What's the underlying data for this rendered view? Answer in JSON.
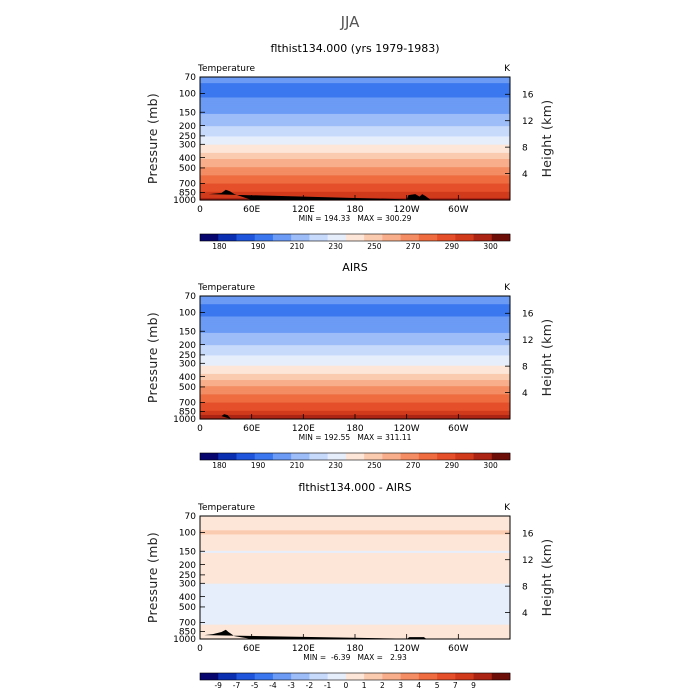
{
  "figure_title": "JJA",
  "colors": {
    "abs_palette": [
      "#06066e",
      "#0a2fb0",
      "#1f55dc",
      "#3b78f0",
      "#6b9bf5",
      "#9dbdf8",
      "#c8dafb",
      "#e6eefc",
      "#fde6d8",
      "#fbcbb0",
      "#f8ae8a",
      "#f48d63",
      "#ee6c3f",
      "#e5502a",
      "#d23a1c",
      "#ac2514",
      "#6e0e08"
    ],
    "diff_palette": [
      "#06066e",
      "#0a2fb0",
      "#1f55dc",
      "#3b78f0",
      "#6b9bf5",
      "#9dbdf8",
      "#c8dafb",
      "#e6eefc",
      "#fde6d8",
      "#fbcbb0",
      "#f8ae8a",
      "#f48d63",
      "#ee6c3f",
      "#e5502a",
      "#d23a1c",
      "#ac2514",
      "#6e0e08"
    ],
    "topography": "#000000"
  },
  "chart_data": [
    {
      "type": "heatmap",
      "title": "flthist134.000 (yrs 1979-1983)",
      "left_label": "Temperature",
      "right_label": "K",
      "ylabel": "Pressure (mb)",
      "ylabel_right": "Height (km)",
      "x_ticks": [
        "0",
        "60E",
        "120E",
        "180",
        "120W",
        "60W"
      ],
      "x_tick_values": [
        0,
        60,
        120,
        180,
        240,
        300
      ],
      "xlim": [
        0,
        360
      ],
      "y_ticks": [
        "70",
        "100",
        "150",
        "200",
        "250",
        "300",
        "400",
        "500",
        "700",
        "850",
        "1000"
      ],
      "y_tick_values": [
        70,
        100,
        150,
        200,
        250,
        300,
        400,
        500,
        700,
        850,
        1000
      ],
      "ylim": [
        1000,
        70
      ],
      "y_scale": "log",
      "height_ticks": [
        "4",
        "8",
        "12",
        "16"
      ],
      "height_tick_values": [
        4,
        8,
        12,
        16
      ],
      "min_max_text": "MIN = 194.33   MAX = 300.29",
      "min": 194.33,
      "max": 300.29,
      "colorbar_labels": [
        "180",
        "190",
        "210",
        "230",
        "250",
        "270",
        "290",
        "300"
      ],
      "profile": [
        [
          70,
          205
        ],
        [
          100,
          201
        ],
        [
          130,
          208
        ],
        [
          170,
          214
        ],
        [
          200,
          219
        ],
        [
          250,
          228
        ],
        [
          300,
          235
        ],
        [
          350,
          242
        ],
        [
          400,
          250
        ],
        [
          450,
          257
        ],
        [
          500,
          262
        ],
        [
          600,
          269
        ],
        [
          700,
          276
        ],
        [
          800,
          282
        ],
        [
          850,
          286
        ],
        [
          925,
          292
        ],
        [
          1000,
          297
        ]
      ],
      "topography": [
        [
          10,
          880
        ],
        [
          25,
          860
        ],
        [
          30,
          800
        ],
        [
          35,
          830
        ],
        [
          40,
          880
        ],
        [
          60,
          1000
        ],
        [
          240,
          1000
        ],
        [
          242,
          900
        ],
        [
          250,
          880
        ],
        [
          255,
          930
        ],
        [
          258,
          880
        ],
        [
          262,
          920
        ],
        [
          268,
          1000
        ]
      ]
    },
    {
      "type": "heatmap",
      "title": "AIRS",
      "left_label": "Temperature",
      "right_label": "K",
      "ylabel": "Pressure (mb)",
      "ylabel_right": "Height (km)",
      "x_ticks": [
        "0",
        "60E",
        "120E",
        "180",
        "120W",
        "60W"
      ],
      "x_tick_values": [
        0,
        60,
        120,
        180,
        240,
        300
      ],
      "xlim": [
        0,
        360
      ],
      "y_ticks": [
        "70",
        "100",
        "150",
        "200",
        "250",
        "300",
        "400",
        "500",
        "700",
        "850",
        "1000"
      ],
      "y_tick_values": [
        70,
        100,
        150,
        200,
        250,
        300,
        400,
        500,
        700,
        850,
        1000
      ],
      "ylim": [
        1000,
        70
      ],
      "y_scale": "log",
      "height_ticks": [
        "4",
        "8",
        "12",
        "16"
      ],
      "height_tick_values": [
        4,
        8,
        12,
        16
      ],
      "min_max_text": "MIN = 192.55   MAX = 311.11",
      "min": 192.55,
      "max": 311.11,
      "colorbar_labels": [
        "180",
        "190",
        "210",
        "230",
        "250",
        "270",
        "290",
        "300"
      ],
      "profile": [
        [
          70,
          206
        ],
        [
          100,
          201
        ],
        [
          130,
          208
        ],
        [
          170,
          214
        ],
        [
          200,
          219
        ],
        [
          250,
          227
        ],
        [
          300,
          234
        ],
        [
          350,
          241
        ],
        [
          400,
          249
        ],
        [
          450,
          256
        ],
        [
          500,
          262
        ],
        [
          600,
          269
        ],
        [
          700,
          276
        ],
        [
          800,
          283
        ],
        [
          850,
          287
        ],
        [
          925,
          293
        ],
        [
          1000,
          298
        ]
      ],
      "topography": [
        [
          25,
          940
        ],
        [
          28,
          900
        ],
        [
          32,
          920
        ],
        [
          36,
          1000
        ]
      ]
    },
    {
      "type": "heatmap",
      "title": "flthist134.000 - AIRS",
      "left_label": "Temperature",
      "right_label": "K",
      "ylabel": "Pressure (mb)",
      "ylabel_right": "Height (km)",
      "x_ticks": [
        "0",
        "60E",
        "120E",
        "180",
        "120W",
        "60W"
      ],
      "x_tick_values": [
        0,
        60,
        120,
        180,
        240,
        300
      ],
      "xlim": [
        0,
        360
      ],
      "y_ticks": [
        "70",
        "100",
        "150",
        "200",
        "250",
        "300",
        "400",
        "500",
        "700",
        "850",
        "1000"
      ],
      "y_tick_values": [
        70,
        100,
        150,
        200,
        250,
        300,
        400,
        500,
        700,
        850,
        1000
      ],
      "ylim": [
        1000,
        70
      ],
      "y_scale": "log",
      "height_ticks": [
        "4",
        "8",
        "12",
        "16"
      ],
      "height_tick_values": [
        4,
        8,
        12,
        16
      ],
      "min_max_text": "MIN =  -6.39   MAX =   2.93",
      "min": -6.39,
      "max": 2.93,
      "colorbar_labels": [
        "-9",
        "-7",
        "-5",
        "-4",
        "-3",
        "-2",
        "-1",
        "0",
        "1",
        "2",
        "3",
        "4",
        "5",
        "7",
        "9"
      ],
      "profile": [
        [
          70,
          0.5
        ],
        [
          85,
          0.2
        ],
        [
          100,
          0.6
        ],
        [
          125,
          0.2
        ],
        [
          150,
          -0.6
        ],
        [
          185,
          0.3
        ],
        [
          200,
          0.3
        ],
        [
          260,
          0.2
        ],
        [
          290,
          -0.4
        ],
        [
          350,
          -1.2
        ],
        [
          400,
          -1.5
        ],
        [
          500,
          -1.4
        ],
        [
          600,
          -1.0
        ],
        [
          700,
          -0.6
        ],
        [
          800,
          -0.3
        ],
        [
          850,
          0.3
        ],
        [
          925,
          0.5
        ],
        [
          1000,
          0.2
        ]
      ],
      "topography": [
        [
          5,
          920
        ],
        [
          15,
          900
        ],
        [
          25,
          860
        ],
        [
          30,
          820
        ],
        [
          33,
          860
        ],
        [
          40,
          940
        ],
        [
          60,
          1000
        ],
        [
          240,
          1000
        ],
        [
          243,
          960
        ],
        [
          260,
          960
        ],
        [
          263,
          1000
        ]
      ]
    }
  ]
}
